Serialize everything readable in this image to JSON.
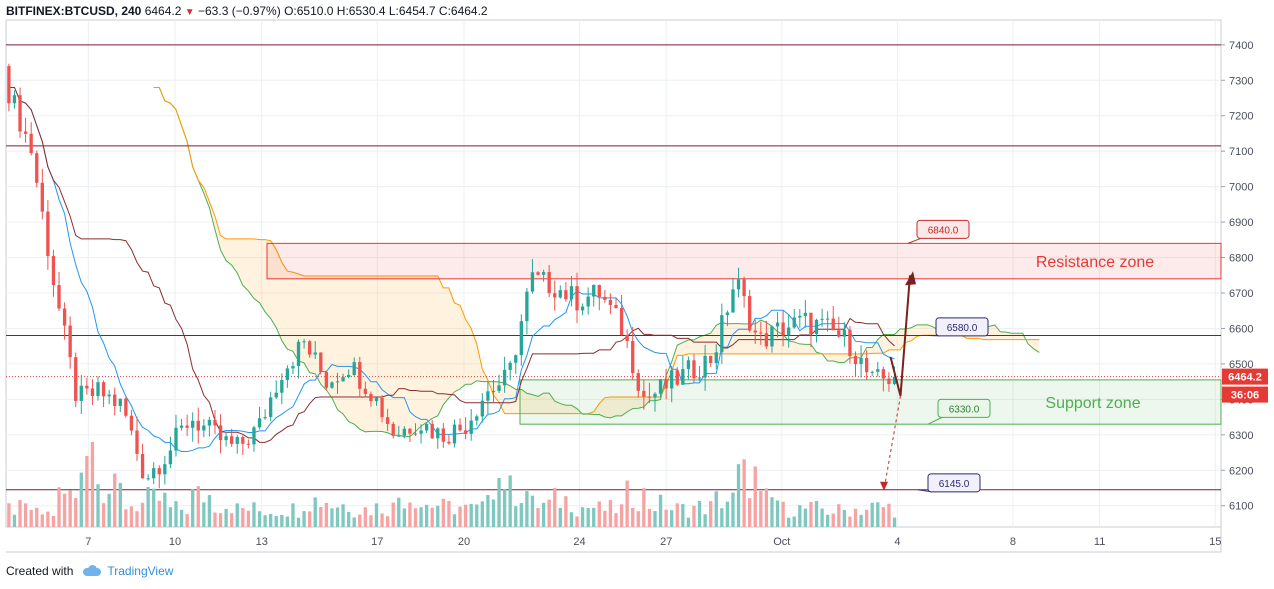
{
  "header": {
    "symbol": "BITFINEX:BTCUSD, 240",
    "last": "6464.2",
    "change": "−63.3 (−0.97%)",
    "open_label": "O:",
    "open": "6510.0",
    "high_label": "H:",
    "high": "6530.4",
    "low_label": "L:",
    "low": "6454.7",
    "close_label": "C:",
    "close": "6464.2"
  },
  "footer": {
    "created_with": "Created with",
    "brand": "TradingView",
    "brand_icon": "tradingview-cloud-icon"
  },
  "price_tag": {
    "value": "6464.2",
    "timer": "36:06",
    "color": "#e53935"
  },
  "chart_data": {
    "type": "candlestick",
    "y_range": [
      6040,
      7470
    ],
    "y_ticks": [
      6100,
      6200,
      6300,
      6400,
      6500,
      6600,
      6700,
      6800,
      6900,
      7000,
      7100,
      7200,
      7300,
      7400
    ],
    "x_ticks": [
      {
        "label": "7",
        "day": 7
      },
      {
        "label": "10",
        "day": 10
      },
      {
        "label": "13",
        "day": 13
      },
      {
        "label": "17",
        "day": 17
      },
      {
        "label": "20",
        "day": 20
      },
      {
        "label": "24",
        "day": 24
      },
      {
        "label": "27",
        "day": 27
      },
      {
        "label": "Oct",
        "day": 31
      },
      {
        "label": "4",
        "day": 35
      },
      {
        "label": "8",
        "day": 39
      },
      {
        "label": "11",
        "day": 42
      },
      {
        "label": "15",
        "day": 46
      }
    ],
    "x_range_days": [
      4.15,
      46.2
    ],
    "last_price": 6464.2,
    "horizontal_levels": [
      7400,
      7115,
      6580,
      6145
    ],
    "zones": [
      {
        "name": "Resistance zone",
        "from": 6740,
        "to": 6840,
        "color": "#e53935"
      },
      {
        "name": "Support zone",
        "from": 6330,
        "to": 6455,
        "color": "#4caf50"
      }
    ],
    "price_labels": [
      "6840.0",
      "6580.0",
      "6330.0",
      "6145.0"
    ],
    "projection": {
      "path": [
        6410,
        6750
      ],
      "alt_target": 6145
    },
    "ohlc_anchors": [
      [
        7340,
        7270,
        7400,
        7240
      ],
      [
        7270,
        7100,
        7300,
        7000
      ],
      [
        6980,
        6720,
        7000,
        6600
      ],
      [
        6600,
        6400,
        6700,
        6300
      ],
      [
        6480,
        6420,
        6560,
        6350
      ],
      [
        6430,
        6380,
        6500,
        6300
      ],
      [
        6380,
        6180,
        6400,
        6150
      ],
      [
        6200,
        6250,
        6300,
        6120
      ],
      [
        6250,
        6350,
        6400,
        6200
      ],
      [
        6340,
        6300,
        6420,
        6250
      ],
      [
        6300,
        6260,
        6380,
        6200
      ],
      [
        6260,
        6320,
        6350,
        6180
      ],
      [
        6320,
        6480,
        6500,
        6300
      ],
      [
        6480,
        6560,
        6600,
        6420
      ],
      [
        6560,
        6450,
        6600,
        6400
      ],
      [
        6450,
        6500,
        6560,
        6400
      ],
      [
        6500,
        6420,
        6560,
        6380
      ],
      [
        6420,
        6300,
        6470,
        6200
      ],
      [
        6300,
        6340,
        6400,
        6240
      ],
      [
        6340,
        6300,
        6420,
        6260
      ],
      [
        6300,
        6320,
        6380,
        6220
      ],
      [
        6320,
        6420,
        6500,
        6280
      ],
      [
        6420,
        6460,
        6520,
        6380
      ],
      [
        6460,
        6740,
        6760,
        6400
      ],
      [
        6740,
        6720,
        6840,
        6680
      ],
      [
        6720,
        6680,
        6760,
        6600
      ],
      [
        6680,
        6700,
        6760,
        6600
      ],
      [
        6700,
        6600,
        6740,
        6560
      ],
      [
        6600,
        6400,
        6640,
        6360
      ],
      [
        6400,
        6440,
        6480,
        6340
      ],
      [
        6440,
        6480,
        6540,
        6400
      ],
      [
        6480,
        6520,
        6600,
        6440
      ],
      [
        6520,
        6740,
        6830,
        6500
      ],
      [
        6740,
        6560,
        6800,
        6480
      ],
      [
        6560,
        6600,
        6640,
        6500
      ],
      [
        6600,
        6620,
        6660,
        6560
      ],
      [
        6620,
        6600,
        6660,
        6560
      ],
      [
        6600,
        6560,
        6640,
        6500
      ],
      [
        6560,
        6450,
        6580,
        6420
      ],
      [
        6510,
        6464,
        6530,
        6455
      ]
    ],
    "volume_anchors": [
      0.2,
      0.15,
      0.35,
      0.95,
      0.4,
      0.25,
      0.3,
      0.2,
      0.35,
      0.25,
      0.2,
      0.18,
      0.2,
      0.3,
      0.25,
      0.2,
      0.22,
      0.35,
      0.25,
      0.22,
      0.2,
      0.55,
      0.4,
      0.25,
      0.3,
      0.22,
      0.2,
      0.35,
      0.25,
      0.2,
      0.22,
      0.3,
      0.55,
      0.3,
      0.2,
      0.2,
      0.18,
      0.2,
      0.22,
      0.2
    ],
    "volume_bar_colors": {
      "up": "#7fc8c0",
      "down": "#f5a3a3"
    },
    "colors": {
      "up": "#26a69a",
      "down": "#ef5350",
      "conversion": "#2196f3",
      "base": "#8b2d2d",
      "span_a": "#4caf50",
      "span_b": "#ff9800"
    }
  }
}
